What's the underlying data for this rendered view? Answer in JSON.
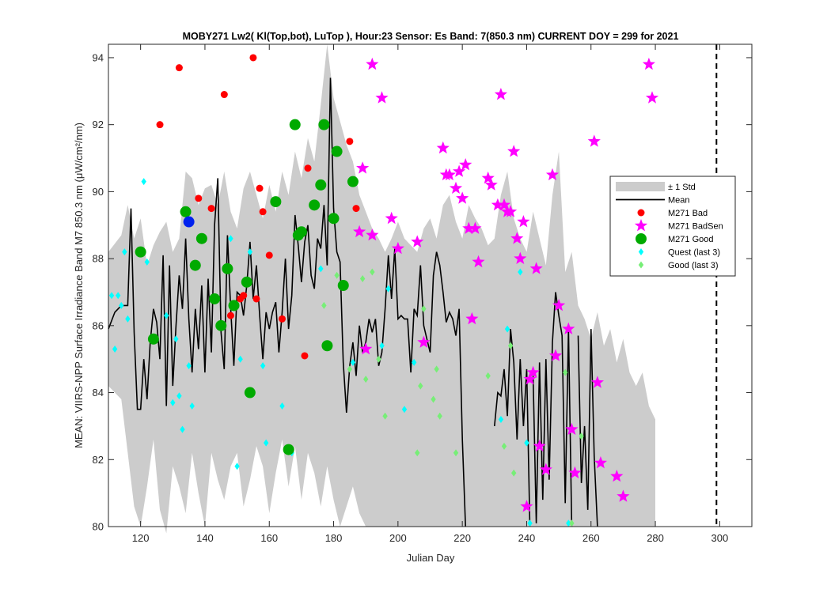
{
  "chart_data": {
    "type": "scatter",
    "title": "MOBY271   Lw2( Kl(Top,bot), LuTop ),   Hour:23 Sensor: Es Band: 7(850.3 nm)   CURRENT DOY = 299 for 2021",
    "xlabel": "Julian Day",
    "ylabel": "MEAN: VIIRS-NPP Surface Irradiance Band M7 850.3 nm (μW/cm²/nm)",
    "xlim": [
      110,
      310
    ],
    "ylim": [
      80,
      94.4
    ],
    "x_ticks": [
      120,
      140,
      160,
      180,
      200,
      220,
      240,
      260,
      280,
      300
    ],
    "y_ticks": [
      80,
      82,
      84,
      86,
      88,
      90,
      92,
      94
    ],
    "current_doy": 299,
    "grid": false,
    "legend_position": "right",
    "colors": {
      "std_band": "#cccccc",
      "mean": "#000000",
      "bad": "#ff0000",
      "badsen": "#ff00ff",
      "good": "#00aa00",
      "quest": "#00ffff",
      "good3": "#77ee77",
      "current": "#0022ee"
    },
    "legend": [
      {
        "key": "std",
        "label": "± 1 Std"
      },
      {
        "key": "mean",
        "label": "Mean"
      },
      {
        "key": "bad",
        "label": "M271 Bad"
      },
      {
        "key": "badsen",
        "label": "M271 BadSen"
      },
      {
        "key": "good",
        "label": "M271 Good"
      },
      {
        "key": "quest",
        "label": "Quest (last 3)"
      },
      {
        "key": "good3",
        "label": "Good (last 3)"
      }
    ],
    "std_band": {
      "x": [
        110,
        114,
        116,
        118,
        120,
        122,
        124,
        126,
        128,
        130,
        132,
        134,
        136,
        138,
        140,
        142,
        144,
        146,
        148,
        150,
        152,
        154,
        156,
        158,
        160,
        162,
        164,
        166,
        168,
        170,
        172,
        174,
        176,
        178,
        180,
        182,
        184,
        186,
        188,
        190,
        192,
        194,
        196,
        198,
        200,
        202,
        204,
        206,
        208,
        210,
        212,
        214,
        216,
        218,
        220,
        222,
        224,
        226,
        228,
        230,
        232,
        234,
        236,
        238,
        240,
        242,
        244,
        246,
        248,
        250,
        252,
        254,
        256,
        258,
        260,
        262,
        264,
        266,
        268,
        270,
        272,
        274,
        276,
        278,
        280
      ],
      "upper": [
        88.2,
        88.7,
        89.6,
        88.6,
        89.2,
        87.8,
        88.4,
        88.8,
        89.1,
        88.2,
        88.6,
        90.6,
        90.4,
        89.6,
        90.1,
        90.2,
        89.6,
        90.6,
        89.4,
        88.9,
        90.1,
        90.6,
        89.9,
        89.2,
        90.2,
        89.4,
        90.6,
        89.9,
        91.2,
        90.4,
        91.6,
        90.9,
        92.6,
        94.4,
        92.8,
        92.1,
        91.4,
        90.9,
        89.9,
        89.4,
        88.9,
        88.6,
        88.2,
        88.6,
        89.1,
        88.6,
        88.4,
        88.2,
        88.9,
        89.2,
        88.6,
        89.6,
        89.9,
        89.1,
        88.6,
        89.6,
        89.2,
        88.9,
        88.4,
        88.6,
        89.9,
        90.6,
        89.2,
        88.6,
        88.2,
        89.4,
        88.6,
        87.8,
        89.9,
        91.2,
        87.6,
        88.2,
        86.6,
        86.2,
        85.6,
        86.4,
        85.4,
        85.9,
        84.9,
        85.6,
        84.6,
        84.2,
        84.6,
        83.6,
        83.2
      ],
      "lower": [
        84.2,
        83.8,
        82.2,
        80.6,
        80.0,
        81.2,
        82.6,
        80.5,
        79.8,
        81.8,
        81.2,
        80.4,
        82.2,
        81.0,
        80.0,
        82.2,
        81.4,
        80.8,
        81.8,
        82.2,
        80.6,
        81.4,
        82.4,
        81.8,
        80.4,
        81.6,
        82.6,
        81.2,
        82.4,
        80.8,
        82.2,
        81.6,
        80.6,
        81.8,
        80.8,
        80.0,
        80.6,
        81.2,
        80.4,
        80.0,
        80.0,
        80.0,
        80.0,
        80.0,
        80.0,
        80.0,
        80.0,
        80.0,
        80.0,
        80.0,
        80.0,
        80.0,
        80.0,
        80.0,
        80.0,
        80.0,
        80.0,
        80.0,
        80.0,
        80.0,
        80.0,
        80.0,
        80.0,
        80.0,
        80.0,
        80.0,
        80.0,
        80.0,
        80.0,
        80.0,
        80.0,
        80.0,
        80.0,
        80.0,
        80.0,
        80.0,
        80.0,
        80.0,
        80.0,
        80.0,
        80.0,
        80.0,
        80.0,
        80.0,
        80.0
      ]
    },
    "mean_segments": [
      [
        [
          110,
          85.9
        ],
        [
          112,
          86.4
        ],
        [
          114,
          86.6
        ],
        [
          116,
          86.6
        ],
        [
          117,
          89.5
        ],
        [
          118,
          85.8
        ],
        [
          119,
          83.5
        ],
        [
          120,
          83.5
        ],
        [
          121,
          85.0
        ],
        [
          122,
          83.8
        ],
        [
          123,
          85.5
        ],
        [
          124,
          86.5
        ],
        [
          125,
          86.1
        ],
        [
          126,
          85.0
        ],
        [
          127,
          88.1
        ],
        [
          128,
          83.6
        ],
        [
          129,
          87.8
        ],
        [
          130,
          84.2
        ],
        [
          131,
          86.0
        ],
        [
          132,
          87.5
        ],
        [
          133,
          86.5
        ],
        [
          134,
          88.6
        ],
        [
          135,
          86.2
        ],
        [
          136,
          84.6
        ],
        [
          137,
          86.5
        ],
        [
          138,
          85.3
        ],
        [
          139,
          87.2
        ],
        [
          140,
          84.6
        ],
        [
          141,
          87.4
        ],
        [
          142,
          85.2
        ],
        [
          143,
          89.0
        ],
        [
          144,
          90.4
        ],
        [
          145,
          85.8
        ],
        [
          146,
          84.7
        ],
        [
          147,
          88.7
        ],
        [
          148,
          86.5
        ],
        [
          149,
          84.8
        ],
        [
          150,
          87.0
        ],
        [
          151,
          86.9
        ],
        [
          152,
          86.3
        ],
        [
          153,
          87.2
        ],
        [
          154,
          88.5
        ],
        [
          155,
          86.8
        ],
        [
          156,
          87.8
        ],
        [
          157,
          86.3
        ],
        [
          158,
          85.0
        ],
        [
          159,
          86.4
        ],
        [
          160,
          85.9
        ],
        [
          161,
          86.4
        ],
        [
          162,
          86.7
        ],
        [
          163,
          85.2
        ],
        [
          164,
          86.4
        ],
        [
          165,
          88.0
        ],
        [
          166,
          85.9
        ],
        [
          167,
          86.9
        ],
        [
          168,
          89.3
        ],
        [
          169,
          88.4
        ],
        [
          170,
          87.3
        ],
        [
          171,
          88.5
        ],
        [
          172,
          89.0
        ],
        [
          173,
          87.5
        ],
        [
          174,
          87.1
        ],
        [
          175,
          88.6
        ],
        [
          176,
          88.3
        ],
        [
          177,
          89.6
        ],
        [
          178,
          87.8
        ],
        [
          179,
          93.4
        ],
        [
          180,
          89.5
        ],
        [
          181,
          88.2
        ],
        [
          182,
          87.9
        ],
        [
          183,
          84.9
        ],
        [
          184,
          83.4
        ],
        [
          185,
          84.8
        ],
        [
          186,
          85.5
        ],
        [
          187,
          84.5
        ],
        [
          188,
          86.0
        ],
        [
          189,
          85.2
        ],
        [
          190,
          85.5
        ],
        [
          191,
          86.2
        ],
        [
          192,
          85.8
        ],
        [
          193,
          86.2
        ],
        [
          194,
          84.8
        ],
        [
          195,
          85.2
        ],
        [
          196,
          86.5
        ],
        [
          197,
          88.1
        ],
        [
          198,
          86.8
        ],
        [
          199,
          88.3
        ],
        [
          200,
          86.2
        ],
        [
          201,
          86.3
        ],
        [
          202,
          86.2
        ],
        [
          203,
          86.2
        ],
        [
          204,
          84.6
        ],
        [
          205,
          86.5
        ],
        [
          206,
          86.3
        ],
        [
          207,
          87.8
        ],
        [
          208,
          86.0
        ],
        [
          209,
          85.6
        ],
        [
          210,
          85.2
        ],
        [
          211,
          87.5
        ],
        [
          212,
          88.2
        ],
        [
          213,
          87.8
        ],
        [
          214,
          87.0
        ],
        [
          215,
          86.1
        ],
        [
          216,
          86.4
        ],
        [
          217,
          86.2
        ],
        [
          218,
          85.7
        ],
        [
          219,
          86.5
        ],
        [
          220,
          82.6
        ],
        [
          221,
          80.0
        ]
      ],
      [
        [
          230,
          83.0
        ],
        [
          231,
          84.0
        ],
        [
          232,
          83.9
        ],
        [
          233,
          84.7
        ],
        [
          234,
          83.3
        ],
        [
          235,
          85.9
        ],
        [
          236,
          84.9
        ],
        [
          237,
          82.6
        ],
        [
          238,
          85.0
        ],
        [
          239,
          83.0
        ],
        [
          240,
          84.7
        ],
        [
          241,
          80.0
        ]
      ],
      [
        [
          242,
          84.5
        ],
        [
          243,
          80.1
        ],
        [
          244,
          84.9
        ],
        [
          245,
          80.8
        ],
        [
          246,
          85.0
        ],
        [
          247,
          81.4
        ],
        [
          248,
          85.5
        ],
        [
          249,
          87.0
        ],
        [
          250,
          86.3
        ],
        [
          251,
          85.7
        ],
        [
          252,
          80.7
        ],
        [
          253,
          85.9
        ],
        [
          254,
          80.0
        ]
      ],
      [
        [
          256,
          85.7
        ],
        [
          257,
          81.3
        ],
        [
          258,
          83.0
        ],
        [
          259,
          80.5
        ],
        [
          260,
          85.9
        ],
        [
          261,
          82.1
        ],
        [
          262,
          80.0
        ]
      ]
    ],
    "bad_points": [
      [
        126,
        92.0
      ],
      [
        132,
        93.7
      ],
      [
        138,
        89.8
      ],
      [
        142,
        89.5
      ],
      [
        146,
        92.9
      ],
      [
        148,
        86.3
      ],
      [
        151,
        86.8
      ],
      [
        152,
        86.9
      ],
      [
        155,
        94.0
      ],
      [
        156,
        86.8
      ],
      [
        157,
        90.1
      ],
      [
        158,
        89.4
      ],
      [
        160,
        88.1
      ],
      [
        164,
        86.2
      ],
      [
        171,
        85.1
      ],
      [
        172,
        90.7
      ],
      [
        185,
        91.5
      ],
      [
        187,
        89.5
      ]
    ],
    "badsen_points": [
      [
        192,
        93.8
      ],
      [
        195,
        92.8
      ],
      [
        189,
        90.7
      ],
      [
        188,
        88.8
      ],
      [
        192,
        88.7
      ],
      [
        190,
        85.3
      ],
      [
        198,
        89.2
      ],
      [
        200,
        88.3
      ],
      [
        206,
        88.5
      ],
      [
        208,
        85.5
      ],
      [
        214,
        91.3
      ],
      [
        215,
        90.5
      ],
      [
        216,
        90.5
      ],
      [
        218,
        90.1
      ],
      [
        219,
        90.6
      ],
      [
        220,
        89.8
      ],
      [
        221,
        90.8
      ],
      [
        222,
        88.9
      ],
      [
        223,
        86.2
      ],
      [
        224,
        88.9
      ],
      [
        225,
        87.9
      ],
      [
        228,
        90.4
      ],
      [
        229,
        90.2
      ],
      [
        231,
        89.6
      ],
      [
        232,
        92.9
      ],
      [
        233,
        89.6
      ],
      [
        234,
        89.4
      ],
      [
        235,
        89.4
      ],
      [
        236,
        91.2
      ],
      [
        237,
        88.6
      ],
      [
        238,
        88.0
      ],
      [
        239,
        89.1
      ],
      [
        240,
        80.6
      ],
      [
        241,
        84.4
      ],
      [
        242,
        84.6
      ],
      [
        243,
        87.7
      ],
      [
        244,
        82.4
      ],
      [
        246,
        81.7
      ],
      [
        248,
        90.5
      ],
      [
        249,
        85.1
      ],
      [
        250,
        86.6
      ],
      [
        253,
        85.9
      ],
      [
        254,
        82.9
      ],
      [
        255,
        81.6
      ],
      [
        261,
        91.5
      ],
      [
        262,
        84.3
      ],
      [
        263,
        81.9
      ],
      [
        268,
        81.5
      ],
      [
        270,
        80.9
      ],
      [
        278,
        93.8
      ],
      [
        279,
        92.8
      ]
    ],
    "good_points": [
      [
        120,
        88.2
      ],
      [
        124,
        85.6
      ],
      [
        134,
        89.4
      ],
      [
        137,
        87.8
      ],
      [
        139,
        88.6
      ],
      [
        143,
        86.8
      ],
      [
        145,
        86.0
      ],
      [
        147,
        87.7
      ],
      [
        149,
        86.6
      ],
      [
        153,
        87.3
      ],
      [
        154,
        84.0
      ],
      [
        162,
        89.7
      ],
      [
        166,
        82.3
      ],
      [
        168,
        92.0
      ],
      [
        169,
        88.7
      ],
      [
        170,
        88.8
      ],
      [
        174,
        89.6
      ],
      [
        176,
        90.2
      ],
      [
        177,
        92.0
      ],
      [
        178,
        85.4
      ],
      [
        180,
        89.2
      ],
      [
        181,
        91.2
      ],
      [
        183,
        87.2
      ],
      [
        186,
        90.3
      ]
    ],
    "current_points": [
      [
        135,
        89.1
      ]
    ],
    "quest_points": [
      [
        111,
        86.9
      ],
      [
        112,
        85.3
      ],
      [
        113,
        86.9
      ],
      [
        114,
        86.6
      ],
      [
        115,
        88.2
      ],
      [
        116,
        86.2
      ],
      [
        121,
        90.3
      ],
      [
        122,
        87.9
      ],
      [
        128,
        86.3
      ],
      [
        130,
        83.7
      ],
      [
        131,
        85.6
      ],
      [
        132,
        83.9
      ],
      [
        133,
        82.9
      ],
      [
        135,
        84.8
      ],
      [
        136,
        83.6
      ],
      [
        148,
        88.6
      ],
      [
        150,
        81.8
      ],
      [
        151,
        85.0
      ],
      [
        154,
        88.2
      ],
      [
        158,
        84.8
      ],
      [
        159,
        82.5
      ],
      [
        164,
        83.6
      ],
      [
        167,
        82.2
      ],
      [
        176,
        87.7
      ],
      [
        186,
        84.9
      ],
      [
        195,
        85.4
      ],
      [
        197,
        87.1
      ],
      [
        202,
        83.5
      ],
      [
        205,
        84.9
      ],
      [
        232,
        83.2
      ],
      [
        234,
        85.9
      ],
      [
        238,
        87.6
      ],
      [
        240,
        82.5
      ],
      [
        241,
        80.1
      ],
      [
        253,
        80.1
      ]
    ],
    "good3_points": [
      [
        177,
        86.6
      ],
      [
        181,
        87.5
      ],
      [
        185,
        84.7
      ],
      [
        189,
        87.4
      ],
      [
        190,
        84.4
      ],
      [
        192,
        87.6
      ],
      [
        194,
        85.0
      ],
      [
        196,
        83.3
      ],
      [
        206,
        82.2
      ],
      [
        207,
        84.2
      ],
      [
        208,
        86.5
      ],
      [
        211,
        83.8
      ],
      [
        212,
        84.7
      ],
      [
        213,
        83.3
      ],
      [
        218,
        82.2
      ],
      [
        228,
        84.5
      ],
      [
        233,
        82.4
      ],
      [
        235,
        85.4
      ],
      [
        236,
        81.6
      ],
      [
        252,
        84.6
      ],
      [
        254,
        80.1
      ],
      [
        257,
        82.7
      ]
    ]
  }
}
